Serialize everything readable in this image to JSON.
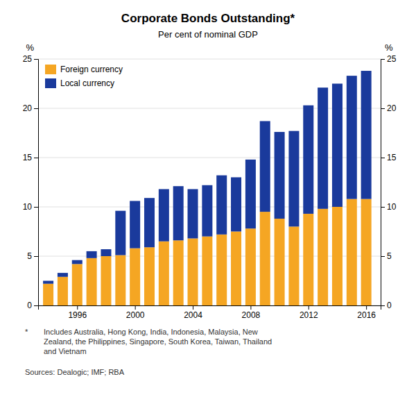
{
  "chart_data": {
    "type": "bar",
    "stacked": true,
    "title": "Corporate Bonds Outstanding*",
    "subtitle": "Per cent of nominal GDP",
    "ylabel": "%",
    "y2label": "%",
    "annotations": [
      "*",
      "Includes Australia, Hong Kong, India, Indonesia, Malaysia, New\nZealand, the Philippines, Singapore, South Korea, Taiwan, Thailand\nand Vietnam",
      "Sources: Dealogic; IMF; RBA"
    ],
    "x": [
      1994,
      1995,
      1996,
      1997,
      1998,
      1999,
      2000,
      2001,
      2002,
      2003,
      2004,
      2005,
      2006,
      2007,
      2008,
      2009,
      2010,
      2011,
      2012,
      2013,
      2014,
      2015,
      2016
    ],
    "series": [
      {
        "name": "Foreign currency",
        "color": "#F5A623",
        "values": [
          2.2,
          2.9,
          4.2,
          4.8,
          5.0,
          5.1,
          5.8,
          5.9,
          6.5,
          6.6,
          6.8,
          7.0,
          7.2,
          7.5,
          7.8,
          9.5,
          8.8,
          8.0,
          9.3,
          9.8,
          10.0,
          10.8,
          10.8
        ]
      },
      {
        "name": "Local currency",
        "color": "#1A3A9C",
        "values": [
          0.3,
          0.4,
          0.4,
          0.7,
          0.7,
          4.5,
          4.8,
          5.0,
          5.3,
          5.5,
          5.0,
          5.2,
          6.0,
          5.5,
          7.0,
          9.2,
          8.8,
          9.7,
          11.0,
          12.3,
          12.5,
          12.5,
          13.0
        ]
      }
    ],
    "xlim": [
      1993.3,
      2017.0
    ],
    "xticks": [
      1996,
      2000,
      2004,
      2008,
      2012,
      2016
    ],
    "ylim": [
      0,
      25
    ],
    "yticks": [
      0,
      5,
      10,
      15,
      20,
      25
    ],
    "y2lim": [
      0,
      25
    ],
    "y2ticks": [
      0,
      5,
      10,
      15,
      20,
      25
    ],
    "grid": true,
    "legend": "upper left"
  }
}
